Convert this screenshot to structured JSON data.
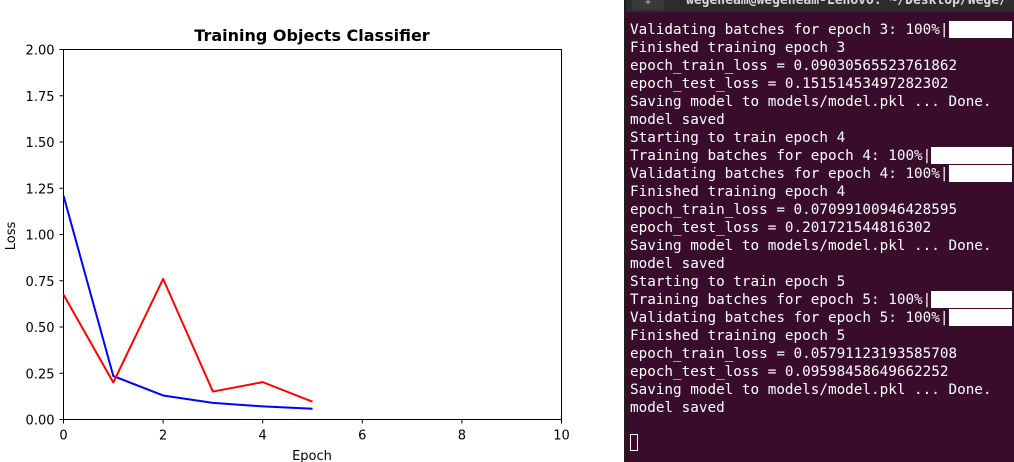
{
  "chart_data": {
    "type": "line",
    "title": "Training Objects Classifier",
    "xlabel": "Epoch",
    "ylabel": "Loss",
    "xlim": [
      0,
      10
    ],
    "ylim": [
      0,
      2
    ],
    "x_ticks": [
      "0",
      "2",
      "4",
      "6",
      "8",
      "10"
    ],
    "y_ticks": [
      "0.00",
      "0.25",
      "0.50",
      "0.75",
      "1.00",
      "1.25",
      "1.50",
      "1.75",
      "2.00"
    ],
    "grid": false,
    "legend": "none",
    "x": [
      0,
      1,
      2,
      3,
      4,
      5
    ],
    "series": [
      {
        "color": "#0000ff",
        "values": [
          1.21,
          0.235,
          0.13,
          0.09,
          0.071,
          0.058
        ]
      },
      {
        "color": "#ff0000",
        "values": [
          0.675,
          0.2,
          0.76,
          0.151,
          0.202,
          0.096
        ]
      }
    ]
  },
  "terminal": {
    "title": "wegeneam@wegeneam-Lenovo: ~/Desktop/Wege/",
    "icon": "+",
    "lines": [
      {
        "text": "Validating batches for epoch 3: 100%|",
        "progress": true
      },
      {
        "text": "Finished training epoch 3"
      },
      {
        "text": "epoch_train_loss = 0.09030565523761862"
      },
      {
        "text": "epoch_test_loss = 0.15151453497282302"
      },
      {
        "text": "Saving model to models/model.pkl ... Done."
      },
      {
        "text": "model saved"
      },
      {
        "text": "Starting to train epoch 4"
      },
      {
        "text": "Training batches for epoch 4: 100%|",
        "progress": true
      },
      {
        "text": "Validating batches for epoch 4: 100%|",
        "progress": true
      },
      {
        "text": "Finished training epoch 4"
      },
      {
        "text": "epoch_train_loss = 0.07099100946428595"
      },
      {
        "text": "epoch_test_loss = 0.201721544816302"
      },
      {
        "text": "Saving model to models/model.pkl ... Done."
      },
      {
        "text": "model saved"
      },
      {
        "text": "Starting to train epoch 5"
      },
      {
        "text": "Training batches for epoch 5: 100%|",
        "progress": true
      },
      {
        "text": "Validating batches for epoch 5: 100%|",
        "progress": true
      },
      {
        "text": "Finished training epoch 5"
      },
      {
        "text": "epoch_train_loss = 0.05791123193585708"
      },
      {
        "text": "epoch_test_loss = 0.09598458649662252"
      },
      {
        "text": "Saving model to models/model.pkl ... Done."
      },
      {
        "text": "model saved"
      }
    ],
    "background": "#380c2a"
  }
}
